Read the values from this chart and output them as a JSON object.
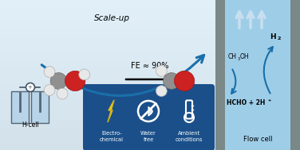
{
  "bg_color": "#cce0f0",
  "bg_top_color": "#e0eff8",
  "flow_cell_bg": "#9ecde8",
  "flow_cell_border": "#7a8a90",
  "icon_box_color": "#1a4f8a",
  "arrow_blue": "#1a6faa",
  "arrow_scale_color": "#1a6faa",
  "title_scale_up": "Scale-up",
  "fe_text": "FE ≈ 90%",
  "h2_text": "H",
  "h2_sub": "2",
  "ch3oh_text": "CH",
  "ch3oh_sub": "3",
  "ch3oh_rest": "OH",
  "hcho_text": "HCHO + 2H",
  "hcho_sup": "+",
  "flow_cell_label": "Flow cell",
  "h_cell_label": "H-cell",
  "electrochem_label": "Electro-\nchemical",
  "water_free_label": "Water\nfree",
  "ambient_label": "Ambient\nconditions",
  "gray_atom": "#909090",
  "red_atom": "#cc2222",
  "white_atom": "#e8e8e8",
  "bond_color": "#606060"
}
